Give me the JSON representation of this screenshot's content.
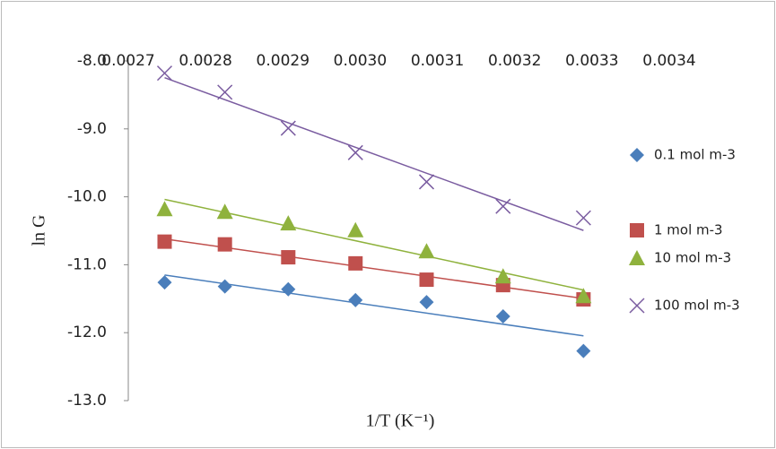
{
  "chart_data": {
    "type": "scatter",
    "xlabel": "1/T (K⁻¹)",
    "ylabel": "ln G",
    "xlim": [
      0.0027,
      0.0034
    ],
    "xticks": [
      {
        "value": 0.0027,
        "label": "0.0027"
      },
      {
        "value": 0.0028,
        "label": "0.0028"
      },
      {
        "value": 0.0029,
        "label": "0.0029"
      },
      {
        "value": 0.003,
        "label": "0.0030"
      },
      {
        "value": 0.0031,
        "label": "0.0031"
      },
      {
        "value": 0.0032,
        "label": "0.0032"
      },
      {
        "value": 0.0033,
        "label": "0.0033"
      },
      {
        "value": 0.0034,
        "label": "0.0034"
      }
    ],
    "ylim": [
      -13,
      -8
    ],
    "yticks": [
      {
        "value": -8,
        "label": "-8.0"
      },
      {
        "value": -9,
        "label": "-9.0"
      },
      {
        "value": -10,
        "label": "-10.0"
      },
      {
        "value": -11,
        "label": "-11.0"
      },
      {
        "value": -12,
        "label": "-12.0"
      },
      {
        "value": -13,
        "label": "-13.0"
      }
    ],
    "trendline": "linear",
    "x": [
      0.002747,
      0.002825,
      0.002907,
      0.002994,
      0.003086,
      0.003185,
      0.003289
    ],
    "series": [
      {
        "name": "0.1 mol m-3",
        "color": "#4a7ebb",
        "marker": "diamond",
        "values": [
          -11.26,
          -11.32,
          -11.36,
          -11.52,
          -11.55,
          -11.76,
          -12.27
        ]
      },
      {
        "name": "1 mol m-3",
        "color": "#c0504d",
        "marker": "square",
        "values": [
          -10.66,
          -10.7,
          -10.89,
          -10.98,
          -11.22,
          -11.3,
          -11.51
        ]
      },
      {
        "name": "10 mol m-3",
        "color": "#8fb23d",
        "marker": "triangle",
        "values": [
          -10.18,
          -10.22,
          -10.39,
          -10.49,
          -10.8,
          -11.17,
          -11.46
        ]
      },
      {
        "name": "100 mol m-3",
        "color": "#7a5ca0",
        "marker": "cross",
        "values": [
          -8.18,
          -8.46,
          -8.99,
          -9.35,
          -9.78,
          -10.14,
          -10.31
        ]
      }
    ]
  }
}
